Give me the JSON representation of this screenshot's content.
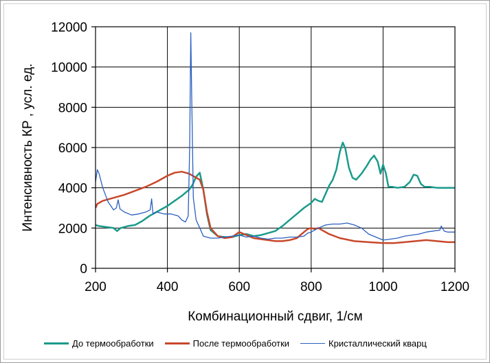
{
  "chart_data": {
    "type": "line",
    "title": "",
    "xlabel": "Комбинационный сдвиг, 1/см",
    "ylabel": "Интенсивность КР , усл. ед.",
    "xlim": [
      200,
      1200
    ],
    "ylim": [
      0,
      12000
    ],
    "xticks": [
      200,
      400,
      600,
      800,
      1000,
      1200
    ],
    "yticks": [
      0,
      2000,
      4000,
      6000,
      8000,
      10000,
      12000
    ],
    "grid": true,
    "legend_position": "bottom",
    "series": [
      {
        "name": "До термообработки",
        "color": "#1a9a8a",
        "width": 2.5,
        "x": [
          200,
          210,
          230,
          250,
          260,
          270,
          290,
          310,
          330,
          350,
          370,
          400,
          420,
          440,
          460,
          470,
          480,
          490,
          500,
          510,
          520,
          540,
          560,
          580,
          600,
          620,
          640,
          660,
          680,
          700,
          720,
          740,
          760,
          780,
          800,
          810,
          820,
          830,
          840,
          850,
          860,
          870,
          880,
          888,
          895,
          905,
          915,
          925,
          940,
          955,
          965,
          975,
          985,
          993,
          1000,
          1008,
          1015,
          1025,
          1040,
          1060,
          1075,
          1085,
          1095,
          1105,
          1115,
          1130,
          1150,
          1170,
          1200
        ],
        "values": [
          2150,
          2100,
          2050,
          2000,
          1850,
          2000,
          2100,
          2150,
          2350,
          2600,
          2800,
          3100,
          3350,
          3600,
          3900,
          4150,
          4550,
          4750,
          3900,
          2700,
          1900,
          1600,
          1550,
          1550,
          1650,
          1700,
          1600,
          1650,
          1750,
          1850,
          2100,
          2400,
          2700,
          3000,
          3250,
          3450,
          3350,
          3300,
          3700,
          4100,
          4400,
          4900,
          5800,
          6250,
          5950,
          5000,
          4500,
          4400,
          4700,
          5100,
          5400,
          5600,
          5300,
          4700,
          5150,
          4700,
          4050,
          4050,
          4000,
          4050,
          4300,
          4650,
          4600,
          4200,
          4050,
          4050,
          4000,
          4000,
          4000
        ]
      },
      {
        "name": "После термообработки",
        "color": "#c8472a",
        "width": 2.5,
        "x": [
          200,
          205,
          220,
          250,
          280,
          310,
          340,
          370,
          400,
          420,
          440,
          460,
          480,
          490,
          500,
          510,
          520,
          540,
          560,
          580,
          600,
          620,
          640,
          660,
          680,
          700,
          720,
          740,
          760,
          780,
          790,
          800,
          810,
          820,
          830,
          850,
          880,
          920,
          960,
          1000,
          1030,
          1060,
          1090,
          1120,
          1150,
          1180,
          1200
        ],
        "values": [
          3000,
          3200,
          3350,
          3500,
          3650,
          3850,
          4050,
          4300,
          4600,
          4750,
          4800,
          4700,
          4500,
          4400,
          3900,
          2800,
          2000,
          1600,
          1500,
          1550,
          1800,
          1650,
          1500,
          1450,
          1400,
          1350,
          1350,
          1400,
          1500,
          1800,
          1950,
          2000,
          1950,
          2000,
          1900,
          1700,
          1500,
          1350,
          1300,
          1250,
          1250,
          1300,
          1350,
          1400,
          1350,
          1300,
          1300
        ]
      },
      {
        "name": "Кристаллический кварц",
        "color": "#2a5fbf",
        "width": 1.3,
        "x": [
          200,
          205,
          210,
          220,
          235,
          250,
          258,
          263,
          268,
          280,
          300,
          320,
          340,
          352,
          356,
          360,
          370,
          390,
          410,
          430,
          440,
          450,
          458,
          462,
          465,
          468,
          472,
          480,
          490,
          500,
          520,
          540,
          560,
          580,
          600,
          620,
          640,
          660,
          680,
          700,
          720,
          740,
          760,
          780,
          790,
          800,
          820,
          840,
          860,
          880,
          900,
          920,
          940,
          960,
          980,
          1000,
          1020,
          1040,
          1060,
          1080,
          1100,
          1120,
          1140,
          1158,
          1162,
          1170,
          1180,
          1200
        ],
        "values": [
          4300,
          4900,
          4700,
          4000,
          3300,
          2900,
          3000,
          3400,
          2950,
          2800,
          2650,
          2700,
          2800,
          2900,
          3450,
          2700,
          2800,
          2700,
          2700,
          2600,
          2400,
          2300,
          2600,
          6000,
          11700,
          8000,
          3500,
          2400,
          2000,
          1600,
          1500,
          1500,
          1550,
          1600,
          1650,
          1550,
          1600,
          1500,
          1450,
          1500,
          1500,
          1550,
          1550,
          1600,
          1750,
          1800,
          2000,
          2150,
          2200,
          2200,
          2250,
          2150,
          2000,
          1700,
          1550,
          1400,
          1450,
          1500,
          1600,
          1650,
          1700,
          1800,
          1850,
          1900,
          2100,
          1850,
          1800,
          1800
        ]
      }
    ]
  }
}
